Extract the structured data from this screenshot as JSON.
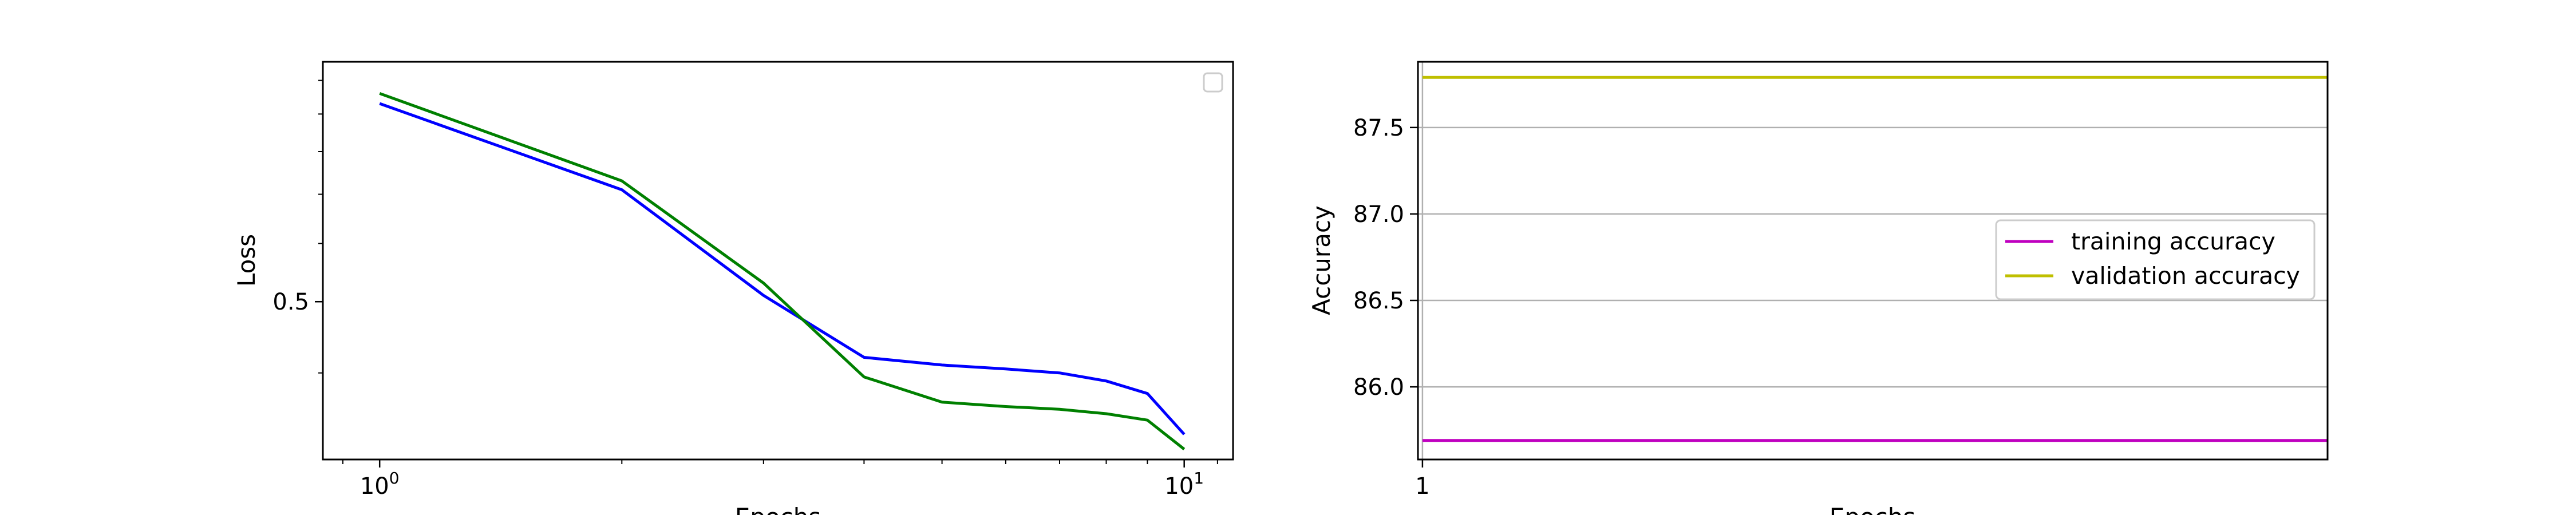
{
  "chart_data": [
    {
      "type": "line",
      "title": "",
      "xlabel": "Epochs",
      "ylabel": "Loss",
      "xscale": "log",
      "yscale": "log",
      "xlim": [
        0.85,
        11.5
      ],
      "ylim": [
        0.305,
        1.06
      ],
      "xticks": [
        1,
        10
      ],
      "xtick_labels": [
        {
          "base": "10",
          "exp": "0"
        },
        {
          "base": "10",
          "exp": "1"
        }
      ],
      "yticks": [
        0.5
      ],
      "ytick_labels": [
        "0.5"
      ],
      "x": [
        1,
        2,
        3,
        4,
        5,
        6,
        7,
        8,
        9,
        10
      ],
      "series": [
        {
          "color": "#0000ff",
          "values": [
            0.93,
            0.71,
            0.51,
            0.42,
            0.41,
            0.405,
            0.4,
            0.39,
            0.375,
            0.33
          ]
        },
        {
          "color": "#008000",
          "values": [
            0.96,
            0.73,
            0.53,
            0.395,
            0.365,
            0.36,
            0.357,
            0.352,
            0.345,
            0.315
          ]
        }
      ],
      "legend": {
        "position": "top-right",
        "entries": []
      },
      "grid": false
    },
    {
      "type": "line",
      "title": "",
      "xlabel": "Epochs",
      "ylabel": "Accuracy",
      "xlim": [
        0.95,
        11.0
      ],
      "ylim": [
        85.58,
        87.88
      ],
      "xticks": [
        1
      ],
      "xtick_labels": [
        "1"
      ],
      "yticks": [
        86.0,
        86.5,
        87.0,
        87.5
      ],
      "ytick_labels": [
        "86.0",
        "86.5",
        "87.0",
        "87.5"
      ],
      "x": [
        1,
        2,
        3,
        4,
        5,
        6,
        7,
        8,
        9,
        10,
        11
      ],
      "series": [
        {
          "name": "training accuracy",
          "color": "#bf00bf",
          "values": [
            85.69,
            85.69,
            85.69,
            85.69,
            85.69,
            85.69,
            85.69,
            85.69,
            85.69,
            85.69,
            85.69
          ]
        },
        {
          "name": "validation accuracy",
          "color": "#bfbf00",
          "values": [
            87.79,
            87.79,
            87.79,
            87.79,
            87.79,
            87.79,
            87.79,
            87.79,
            87.79,
            87.79,
            87.79
          ]
        }
      ],
      "legend": {
        "position": "center-right",
        "entries": [
          "training accuracy",
          "validation accuracy"
        ]
      },
      "grid": true
    }
  ]
}
